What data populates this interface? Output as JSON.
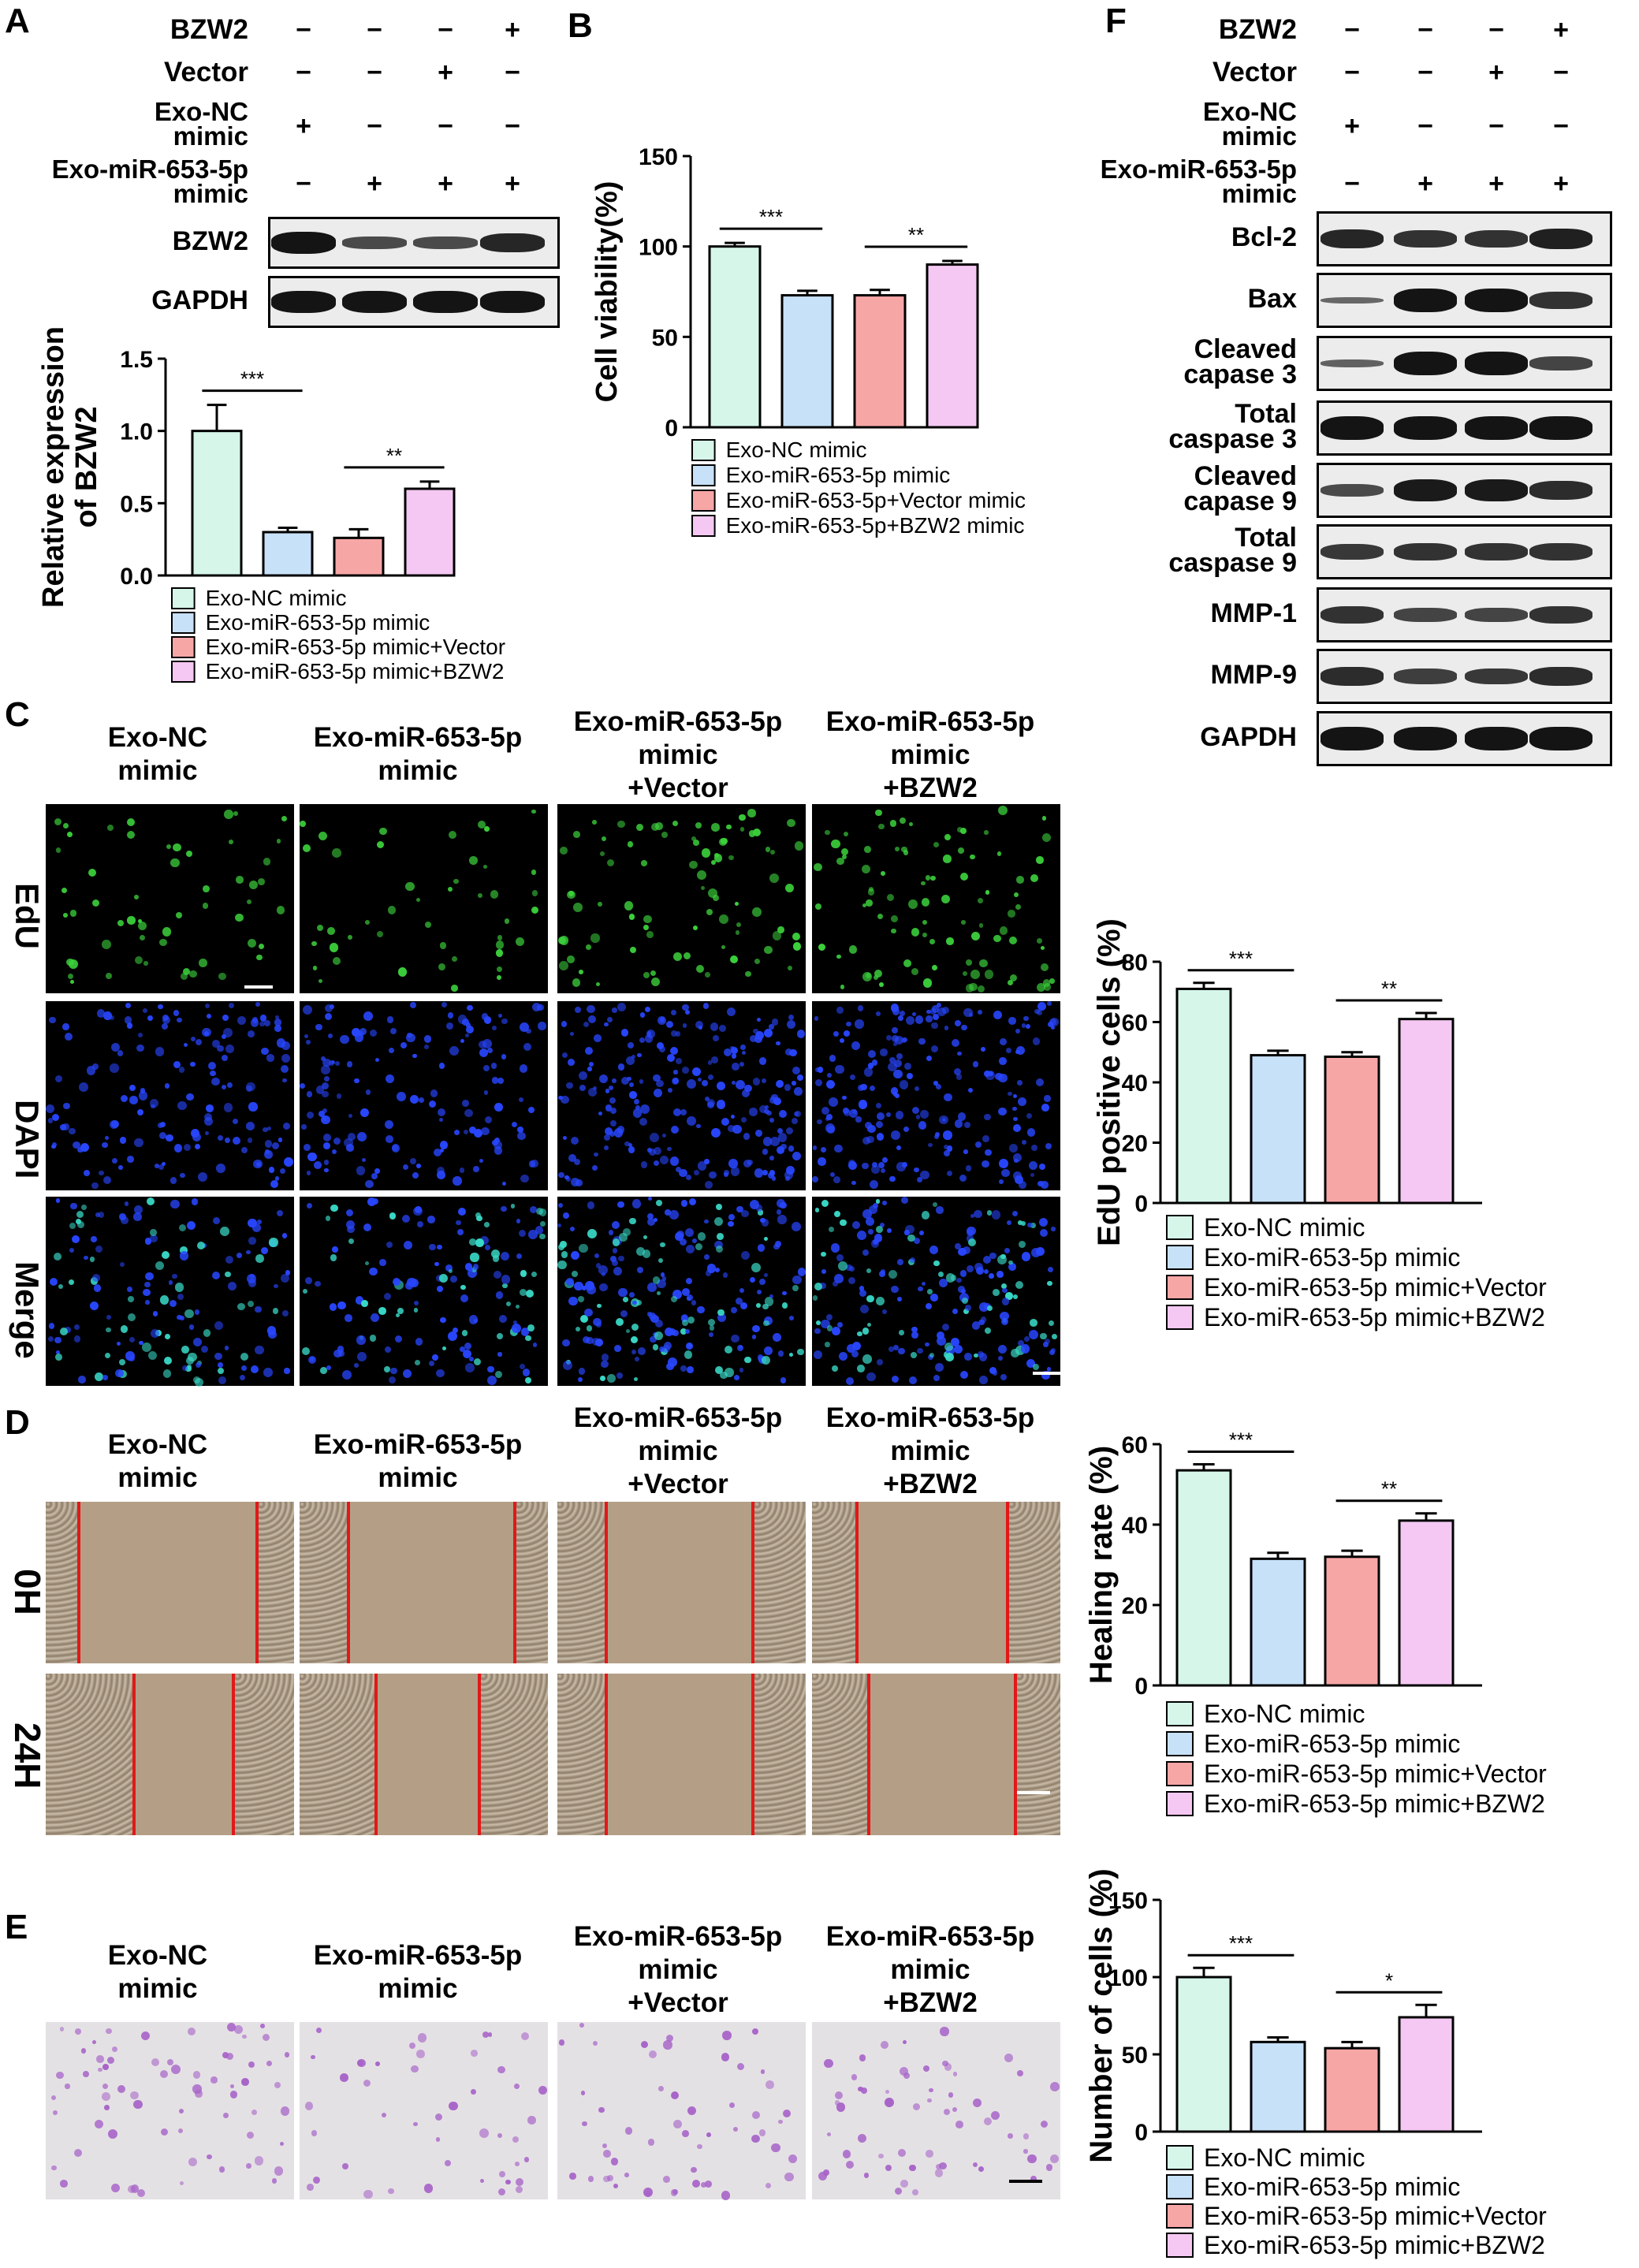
{
  "panels": {
    "A": "A",
    "B": "B",
    "C": "C",
    "D": "D",
    "E": "E",
    "F": "F"
  },
  "panel_a": {
    "conditions": [
      {
        "label": "BZW2",
        "signs": [
          "−",
          "−",
          "−",
          "+"
        ]
      },
      {
        "label": "Vector",
        "signs": [
          "−",
          "−",
          "+",
          "−"
        ]
      },
      {
        "label": "Exo-NC\nmimic",
        "signs": [
          "+",
          "−",
          "−",
          "−"
        ]
      },
      {
        "label": "Exo-miR-653-5p\nmimic",
        "signs": [
          "−",
          "+",
          "+",
          "+"
        ]
      }
    ],
    "blots": [
      "BZW2",
      "GAPDH"
    ]
  },
  "panel_f": {
    "conditions": [
      {
        "label": "BZW2",
        "signs": [
          "−",
          "−",
          "−",
          "+"
        ]
      },
      {
        "label": "Vector",
        "signs": [
          "−",
          "−",
          "+",
          "−"
        ]
      },
      {
        "label": "Exo-NC\nmimic",
        "signs": [
          "+",
          "−",
          "−",
          "−"
        ]
      },
      {
        "label": "Exo-miR-653-5p\nmimic",
        "signs": [
          "−",
          "+",
          "+",
          "+"
        ]
      }
    ],
    "blots": [
      "Bcl-2",
      "Bax",
      "Cleaved\ncapase 3",
      "Total\ncaspase 3",
      "Cleaved\ncapase 9",
      "Total\ncaspase 9",
      "MMP-1",
      "MMP-9",
      "GAPDH"
    ]
  },
  "headers": {
    "nc": "Exo-NC\nmimic",
    "mir": "Exo-miR-653-5p\nmimic",
    "mir_vector": "Exo-miR-653-5p\nmimic\n+Vector",
    "mir_bzw2": "Exo-miR-653-5p\nmimic\n+BZW2"
  },
  "row_labels": {
    "edu": "EdU",
    "dapi": "DAPI",
    "merge": "Merge",
    "h0": "0H",
    "h24": "24H"
  },
  "colors": {
    "nc": "#d6f6ea",
    "mir": "#c7e1f8",
    "vector": "#f7a6a6",
    "bzw2": "#f4c8f2",
    "edu": "#3cd23c",
    "dapi": "#2846ff",
    "wound_edge": "#e21818",
    "crystal_violet": "#a763c8"
  },
  "chart_data": [
    {
      "id": "A",
      "type": "bar",
      "ylabel": "Relative expression\nof BZW2",
      "ylim": [
        0,
        1.5
      ],
      "yticks": [
        "0.0",
        "0.5",
        "1.0",
        "1.5"
      ],
      "ytick_values": [
        0,
        0.5,
        1.0,
        1.5
      ],
      "series_names": [
        "Exo-NC mimic",
        "Exo-miR-653-5p mimic",
        "Exo-miR-653-5p mimic+Vector",
        "Exo-miR-653-5p mimic+BZW2"
      ],
      "values": [
        1.0,
        0.3,
        0.26,
        0.6
      ],
      "errors": [
        0.18,
        0.03,
        0.06,
        0.05
      ],
      "sig": [
        {
          "from": 0,
          "to": 1,
          "label": "***"
        },
        {
          "from": 2,
          "to": 3,
          "label": "**"
        }
      ]
    },
    {
      "id": "B",
      "type": "bar",
      "ylabel": "Cell viability(%)",
      "ylim": [
        0,
        150
      ],
      "yticks": [
        "0",
        "50",
        "100",
        "150"
      ],
      "ytick_values": [
        0,
        50,
        100,
        150
      ],
      "series_names": [
        "Exo-NC mimic",
        "Exo-miR-653-5p mimic",
        "Exo-miR-653-5p+Vector mimic",
        "Exo-miR-653-5p+BZW2 mimic"
      ],
      "values": [
        100,
        73,
        73,
        90
      ],
      "errors": [
        2,
        2.5,
        3,
        2
      ],
      "sig": [
        {
          "from": 0,
          "to": 1,
          "label": "***"
        },
        {
          "from": 2,
          "to": 3,
          "label": "**"
        }
      ]
    },
    {
      "id": "C",
      "type": "bar",
      "ylabel": "EdU positive cells (%)",
      "ylim": [
        0,
        80
      ],
      "yticks": [
        "0",
        "20",
        "40",
        "60",
        "80"
      ],
      "ytick_values": [
        0,
        20,
        40,
        60,
        80
      ],
      "series_names": [
        "Exo-NC mimic",
        "Exo-miR-653-5p mimic",
        "Exo-miR-653-5p mimic+Vector",
        "Exo-miR-653-5p mimic+BZW2"
      ],
      "values": [
        71,
        49,
        48.5,
        61
      ],
      "errors": [
        2,
        1.5,
        1.5,
        2
      ],
      "sig": [
        {
          "from": 0,
          "to": 1,
          "label": "***"
        },
        {
          "from": 2,
          "to": 3,
          "label": "**"
        }
      ]
    },
    {
      "id": "D",
      "type": "bar",
      "ylabel": "Healing rate (%)",
      "ylim": [
        0,
        60
      ],
      "yticks": [
        "0",
        "20",
        "40",
        "60"
      ],
      "ytick_values": [
        0,
        20,
        40,
        60
      ],
      "series_names": [
        "Exo-NC mimic",
        "Exo-miR-653-5p mimic",
        "Exo-miR-653-5p mimic+Vector",
        "Exo-miR-653-5p mimic+BZW2"
      ],
      "values": [
        53.5,
        31.5,
        32,
        41
      ],
      "errors": [
        1.5,
        1.5,
        1.5,
        1.8
      ],
      "sig": [
        {
          "from": 0,
          "to": 1,
          "label": "***"
        },
        {
          "from": 2,
          "to": 3,
          "label": "**"
        }
      ]
    },
    {
      "id": "E",
      "type": "bar",
      "ylabel": "Number of cells (%)",
      "ylim": [
        0,
        150
      ],
      "yticks": [
        "0",
        "50",
        "100",
        "150"
      ],
      "ytick_values": [
        0,
        50,
        100,
        150
      ],
      "series_names": [
        "Exo-NC mimic",
        "Exo-miR-653-5p mimic",
        "Exo-miR-653-5p mimic+Vector",
        "Exo-miR-653-5p mimic+BZW2"
      ],
      "values": [
        100,
        58,
        54,
        74
      ],
      "errors": [
        6,
        3,
        4,
        8
      ],
      "sig": [
        {
          "from": 0,
          "to": 1,
          "label": "***"
        },
        {
          "from": 2,
          "to": 3,
          "label": "*"
        }
      ]
    }
  ]
}
